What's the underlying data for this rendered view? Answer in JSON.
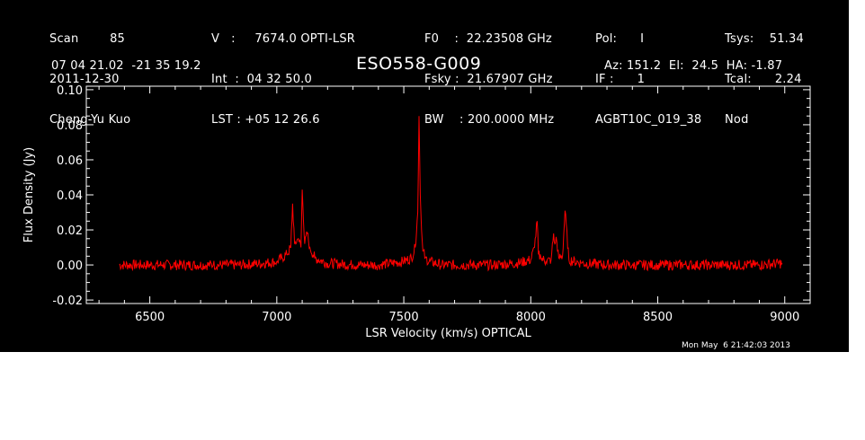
{
  "header": {
    "col1": [
      "Scan        85",
      "2011-12-30",
      "Cheng-Yu Kuo"
    ],
    "col2": [
      "V   :     7674.0 OPTI-LSR",
      "Int  :  04 32 50.0",
      "LST : +05 12 26.6"
    ],
    "col3": [
      "F0    :  22.23508 GHz",
      "Fsky :  21.67907 GHz",
      "BW    : 200.0000 MHz"
    ],
    "col4": [
      "Pol:      I",
      "IF :      1",
      "AGBT10C_019_38"
    ],
    "col5": [
      "Tsys:    51.34",
      "Tcal:      2.24",
      "Nod"
    ],
    "coords": "07 04 21.02  -21 35 19.2",
    "source": "ESO558-G009",
    "pointing": "Az: 151.2  El:  24.5  HA: -1.87",
    "datestamp": "Mon May  6 21:42:03 2013"
  },
  "colors": {
    "background": "#000000",
    "axes": "#ffffff",
    "trace": "#ff0000"
  },
  "chart_data": {
    "type": "line",
    "title": "ESO558-G009",
    "xlabel": "LSR Velocity (km/s) OPTICAL",
    "ylabel": "Flux Density (Jy)",
    "xlim": [
      6250,
      9100
    ],
    "ylim": [
      -0.022,
      0.102
    ],
    "xticks": [
      6500,
      7000,
      7500,
      8000,
      8500,
      9000
    ],
    "xtick_labels": [
      "6500",
      "7000",
      "7500",
      "8000",
      "8500",
      "9000"
    ],
    "yticks": [
      -0.02,
      0,
      0.02,
      0.04,
      0.06,
      0.08,
      0.1
    ],
    "ytick_labels": [
      "-0.02",
      "0.00",
      "0.02",
      "0.04",
      "0.06",
      "0.08",
      "0.10"
    ],
    "grid": false,
    "series": [
      {
        "x": [
          6380,
          6450,
          6550,
          6650,
          6750,
          6850,
          6950,
          7000,
          7020,
          7040,
          7055,
          7062,
          7070,
          7085,
          7095,
          7100,
          7110,
          7120,
          7130,
          7150,
          7200,
          7300,
          7400,
          7500,
          7530,
          7545,
          7555,
          7560,
          7565,
          7570,
          7575,
          7585,
          7600,
          7650,
          7750,
          7850,
          7950,
          8000,
          8015,
          8025,
          8030,
          8040,
          8060,
          8080,
          8090,
          8095,
          8100,
          8110,
          8125,
          8135,
          8150,
          8200,
          8300,
          8400,
          8500,
          8600,
          8700,
          8800,
          8900,
          8990
        ],
        "y": [
          0.0,
          0.0,
          0.0,
          0.0,
          0.0,
          0.0,
          0.001,
          0.002,
          0.004,
          0.006,
          0.01,
          0.035,
          0.012,
          0.015,
          0.01,
          0.043,
          0.012,
          0.018,
          0.01,
          0.004,
          0.001,
          0.0,
          0.0,
          0.002,
          0.004,
          0.01,
          0.03,
          0.085,
          0.04,
          0.02,
          0.008,
          0.004,
          0.002,
          0.0,
          0.0,
          0.0,
          0.001,
          0.003,
          0.01,
          0.025,
          0.006,
          0.004,
          0.002,
          0.003,
          0.018,
          0.012,
          0.016,
          0.004,
          0.005,
          0.031,
          0.003,
          0.001,
          0.0,
          0.0,
          0.0,
          0.0,
          0.0,
          0.0,
          0.0,
          0.001
        ]
      }
    ]
  }
}
